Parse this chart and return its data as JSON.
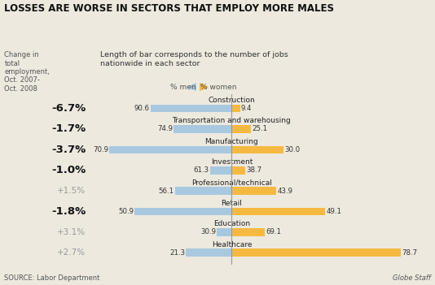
{
  "title": "LOSSES ARE WORSE IN SECTORS THAT EMPLOY MORE MALES",
  "subtitle": "Length of bar corresponds to the number of jobs\nnationwide in each sector",
  "left_label": "Change in\ntotal\nemployment,\nOct. 2007-\nOct. 2008",
  "source": "SOURCE: Labor Department",
  "byline": "Globe Staff",
  "sectors": [
    {
      "name": "Construction",
      "men": 90.6,
      "women": 9.4,
      "change": "-6.7%",
      "bold": true,
      "total": 7.5
    },
    {
      "name": "Transportation and warehousing",
      "men": 74.9,
      "women": 25.1,
      "change": "-1.7%",
      "bold": true,
      "total": 6.5
    },
    {
      "name": "Manufacturing",
      "men": 70.9,
      "women": 30.0,
      "change": "-3.7%",
      "bold": true,
      "total": 14.5
    },
    {
      "name": "Investment",
      "men": 61.3,
      "women": 38.7,
      "change": "-1.0%",
      "bold": true,
      "total": 3.0
    },
    {
      "name": "Professional/technical",
      "men": 56.1,
      "women": 43.9,
      "change": "+1.5%",
      "bold": false,
      "total": 8.5
    },
    {
      "name": "Retail",
      "men": 50.9,
      "women": 49.1,
      "change": "-1.8%",
      "bold": true,
      "total": 16.0
    },
    {
      "name": "Education",
      "men": 30.9,
      "women": 69.1,
      "change": "+3.1%",
      "bold": false,
      "total": 4.0
    },
    {
      "name": "Healthcare",
      "men": 21.3,
      "women": 78.7,
      "change": "+2.7%",
      "bold": false,
      "total": 18.0
    }
  ],
  "color_men": "#A8C8E0",
  "color_women": "#F5B942",
  "bg_color": "#EDE9DF",
  "center_line_color": "#999999",
  "change_bold_color": "#111111",
  "change_light_color": "#999999",
  "sector_name_color": "#222222",
  "pct_label_color": "#333333"
}
